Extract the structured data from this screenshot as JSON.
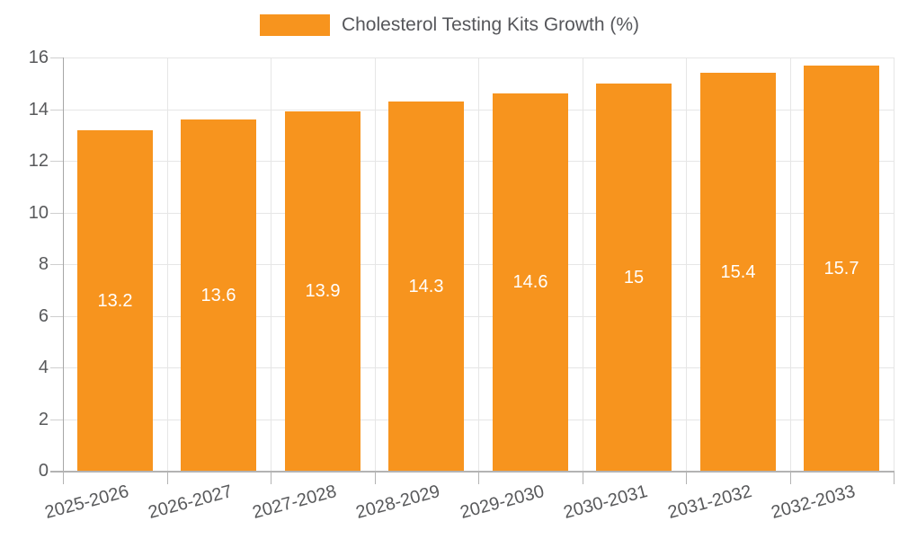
{
  "chart_data": {
    "type": "bar",
    "title": "",
    "legend_label": "Cholesterol Testing Kits Growth (%)",
    "legend_position": "top-center",
    "categories": [
      "2025-2026",
      "2026-2027",
      "2027-2028",
      "2028-2029",
      "2029-2030",
      "2030-2031",
      "2031-2032",
      "2032-2033"
    ],
    "values": [
      13.2,
      13.6,
      13.9,
      14.3,
      14.6,
      15,
      15.4,
      15.7
    ],
    "value_labels": [
      "13.2",
      "13.6",
      "13.9",
      "14.3",
      "14.6",
      "15",
      "15.4",
      "15.7"
    ],
    "xlabel": "",
    "ylabel": "",
    "ylim": [
      0,
      16
    ],
    "yticks": [
      0,
      2,
      4,
      6,
      8,
      10,
      12,
      14,
      16
    ],
    "ytick_labels": [
      "0",
      "2",
      "4",
      "6",
      "8",
      "10",
      "12",
      "14",
      "16"
    ],
    "grid": "on",
    "x_label_rotation_deg": -15,
    "colors": {
      "bar": "#F7941E",
      "grid": "#e6e6e6",
      "axis_line": "#b3b3b3",
      "axis_text": "#58595b",
      "legend_text": "#56575b",
      "value_label_text": "#ffffff",
      "background": "#ffffff"
    }
  }
}
